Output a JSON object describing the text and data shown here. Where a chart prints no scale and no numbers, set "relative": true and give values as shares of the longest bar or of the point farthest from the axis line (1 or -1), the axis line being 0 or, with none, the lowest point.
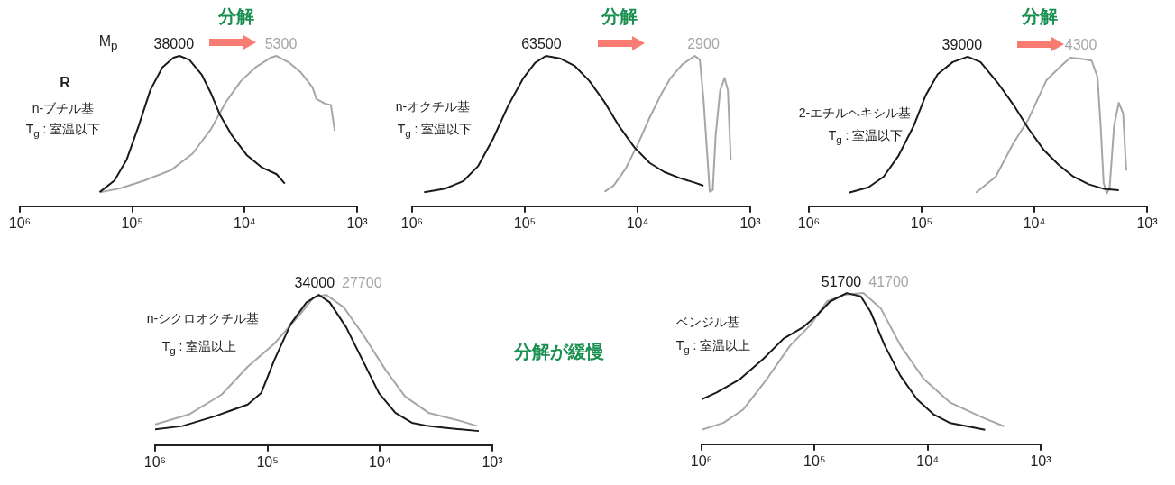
{
  "chart_data": [
    {
      "type": "line",
      "relative": true,
      "log": "x",
      "grid": false,
      "marker": "none",
      "line_style": "solid",
      "xlim": [
        1000000,
        1000
      ],
      "xticks": [
        {
          "value": 1000000,
          "label": "10⁶"
        },
        {
          "value": 100000,
          "label": "10⁵"
        },
        {
          "value": 10000,
          "label": "10⁴"
        },
        {
          "value": 1000,
          "label": "10³"
        }
      ],
      "annotations": [
        "分解",
        "M$_{p}$",
        "R",
        "n-ブチル基",
        "T$_{g}$ : 室温以下",
        {
          "text": "38000",
          "x": 38000,
          "y": 1
        },
        {
          "text": "5300",
          "x": 5300,
          "y": 1
        }
      ],
      "series": [
        {
          "type": "line",
          "color": "#1a1a1a",
          "x": [
            195000,
            144000,
            112000,
            88000,
            69000,
            54000,
            43000,
            38000,
            31000,
            24000,
            20000,
            16700,
            13000,
            9600,
            7000,
            5200,
            4400
          ],
          "values": [
            0.094,
            0.171,
            0.311,
            0.532,
            0.773,
            0.924,
            0.988,
            1.0,
            0.974,
            0.873,
            0.753,
            0.612,
            0.472,
            0.341,
            0.257,
            0.213,
            0.151
          ]
        },
        {
          "type": "line",
          "color": "#a6a6a6",
          "x": [
            190000,
            127000,
            78000,
            45000,
            29000,
            20000,
            14700,
            10800,
            8000,
            5800,
            5200,
            4000,
            3200,
            2500,
            2300,
            1930,
            1710,
            1580
          ],
          "values": [
            0.094,
            0.12,
            0.171,
            0.241,
            0.351,
            0.512,
            0.693,
            0.833,
            0.924,
            0.99,
            1.0,
            0.954,
            0.894,
            0.793,
            0.713,
            0.683,
            0.673,
            0.502
          ]
        }
      ]
    },
    {
      "type": "line",
      "relative": true,
      "log": "x",
      "grid": false,
      "marker": "none",
      "line_style": "solid",
      "xlim": [
        1000000,
        1000
      ],
      "xticks": [
        {
          "value": 1000000,
          "label": "10⁶"
        },
        {
          "value": 100000,
          "label": "10⁵"
        },
        {
          "value": 10000,
          "label": "10⁴"
        },
        {
          "value": 1000,
          "label": "10³"
        }
      ],
      "annotations": [
        "分解",
        "n-オクチル基",
        "T$_{g}$ : 室温以下",
        {
          "text": "63500",
          "x": 63500,
          "y": 1
        },
        {
          "text": "2900",
          "x": 2900,
          "y": 1
        }
      ],
      "series": [
        {
          "type": "line",
          "color": "#1a1a1a",
          "x": [
            782000,
            509000,
            352000,
            259000,
            191000,
            140000,
            103000,
            81000,
            65000,
            49000,
            36000,
            26700,
            19600,
            14500,
            10600,
            7800,
            5800,
            4200,
            3100,
            2600
          ],
          "values": [
            0.093,
            0.117,
            0.167,
            0.268,
            0.45,
            0.671,
            0.853,
            0.954,
            1.0,
            0.984,
            0.933,
            0.833,
            0.692,
            0.53,
            0.389,
            0.288,
            0.228,
            0.187,
            0.157,
            0.137
          ]
        },
        {
          "type": "line",
          "color": "#a6a6a6",
          "x": [
            19600,
            16300,
            12800,
            10000,
            7800,
            6100,
            5100,
            4000,
            3100,
            2800,
            2600,
            2360,
            2290,
            2150,
            2030,
            1850,
            1690,
            1580,
            1490
          ],
          "values": [
            0.097,
            0.137,
            0.248,
            0.409,
            0.591,
            0.752,
            0.853,
            0.944,
            1.0,
            0.974,
            0.712,
            0.248,
            0.097,
            0.107,
            0.47,
            0.772,
            0.853,
            0.772,
            0.308
          ]
        }
      ]
    },
    {
      "type": "line",
      "relative": true,
      "log": "x",
      "grid": false,
      "marker": "none",
      "line_style": "solid",
      "xlim": [
        1000000,
        1000
      ],
      "xticks": [
        {
          "value": 1000000,
          "label": "10⁶"
        },
        {
          "value": 100000,
          "label": "10⁵"
        },
        {
          "value": 10000,
          "label": "10⁴"
        },
        {
          "value": 1000,
          "label": "10³"
        }
      ],
      "annotations": [
        "分解",
        "2-エチルヘキシル基",
        "T$_{g}$ : 室温以下",
        {
          "text": "39000",
          "x": 39000,
          "y": 1
        },
        {
          "text": "4300",
          "x": 4300,
          "y": 1
        }
      ],
      "series": [
        {
          "type": "line",
          "color": "#1a1a1a",
          "x": [
            441000,
            296000,
            217000,
            160000,
            117000,
            92000,
            72000,
            53000,
            39000,
            30000,
            21000,
            15400,
            11300,
            8300,
            6100,
            4500,
            3300,
            2430,
            1780
          ],
          "values": [
            0.091,
            0.127,
            0.198,
            0.339,
            0.54,
            0.742,
            0.883,
            0.964,
            1.0,
            0.964,
            0.823,
            0.681,
            0.52,
            0.379,
            0.278,
            0.198,
            0.147,
            0.117,
            0.107
          ]
        },
        {
          "type": "line",
          "color": "#a6a6a6",
          "x": [
            33000,
            22000,
            15400,
            11300,
            7800,
            6100,
            4800,
            3700,
            3100,
            2750,
            2580,
            2430,
            2280,
            2150,
            1960,
            1780,
            1630,
            1530
          ],
          "values": [
            0.091,
            0.198,
            0.419,
            0.581,
            0.843,
            0.923,
            0.994,
            0.984,
            0.974,
            0.863,
            0.54,
            0.157,
            0.087,
            0.117,
            0.54,
            0.692,
            0.621,
            0.238
          ]
        }
      ]
    },
    {
      "type": "line",
      "relative": true,
      "log": "x",
      "grid": false,
      "marker": "none",
      "line_style": "solid",
      "xlim": [
        1000000,
        1000
      ],
      "xticks": [
        {
          "value": 1000000,
          "label": "10⁶"
        },
        {
          "value": 100000,
          "label": "10⁵"
        },
        {
          "value": 10000,
          "label": "10⁴"
        },
        {
          "value": 1000,
          "label": "10³"
        }
      ],
      "annotations": [
        "n-シクロオクチル基",
        "T$_{g}$ : 室温以上",
        "分解が緩慢",
        {
          "text": "34000",
          "x": 34000,
          "y": 1
        },
        {
          "text": "27700",
          "x": 27700,
          "y": 1
        }
      ],
      "series": [
        {
          "type": "line",
          "color": "#1a1a1a",
          "x": [
            1000000,
            573000,
            292000,
            150000,
            114000,
            87000,
            62000,
            45000,
            35000,
            28000,
            20000,
            14300,
            10200,
            7300,
            5200,
            3700,
            2670,
            1900,
            1320
          ],
          "values": [
            0.105,
            0.127,
            0.193,
            0.27,
            0.346,
            0.566,
            0.807,
            0.95,
            1.0,
            0.95,
            0.785,
            0.566,
            0.346,
            0.215,
            0.149,
            0.127,
            0.116,
            0.105,
            0.094
          ]
        },
        {
          "type": "line",
          "color": "#a6a6a6",
          "x": [
            1000000,
            501000,
            256000,
            150000,
            87000,
            51000,
            39000,
            30000,
            21000,
            14300,
            8900,
            6000,
            3700,
            1900,
            1360
          ],
          "values": [
            0.138,
            0.204,
            0.336,
            0.522,
            0.675,
            0.873,
            0.982,
            1.0,
            0.917,
            0.741,
            0.5,
            0.325,
            0.215,
            0.16,
            0.127
          ]
        }
      ]
    },
    {
      "type": "line",
      "relative": true,
      "log": "x",
      "grid": false,
      "marker": "none",
      "line_style": "solid",
      "xlim": [
        1000000,
        1000
      ],
      "xticks": [
        {
          "value": 1000000,
          "label": "10⁶"
        },
        {
          "value": 100000,
          "label": "10⁵"
        },
        {
          "value": 10000,
          "label": "10⁴"
        },
        {
          "value": 1000,
          "label": "10³"
        }
      ],
      "annotations": [
        "ベンジル基",
        "T$_{g}$ : 室温以上",
        {
          "text": "51700",
          "x": 51700,
          "y": 1
        },
        {
          "text": "41700",
          "x": 41700,
          "y": 1
        }
      ],
      "series": [
        {
          "type": "line",
          "color": "#1a1a1a",
          "x": [
            1000000,
            736000,
            457000,
            284000,
            188000,
            125000,
            95000,
            73000,
            52000,
            39000,
            32000,
            24000,
            17400,
            12400,
            8800,
            6300,
            4400,
            3100
          ],
          "values": [
            0.297,
            0.342,
            0.431,
            0.565,
            0.699,
            0.777,
            0.855,
            0.944,
            1.0,
            0.978,
            0.877,
            0.654,
            0.453,
            0.297,
            0.196,
            0.14,
            0.118,
            0.096
          ]
        },
        {
          "type": "line",
          "color": "#a6a6a6",
          "x": [
            1000000,
            643000,
            427000,
            265000,
            164000,
            109000,
            78000,
            55000,
            37000,
            26000,
            17400,
            10800,
            6300,
            3200,
            2100
          ],
          "values": [
            0.096,
            0.141,
            0.23,
            0.431,
            0.654,
            0.788,
            0.944,
            0.989,
            1.0,
            0.9,
            0.654,
            0.431,
            0.275,
            0.174,
            0.118
          ]
        }
      ]
    }
  ]
}
